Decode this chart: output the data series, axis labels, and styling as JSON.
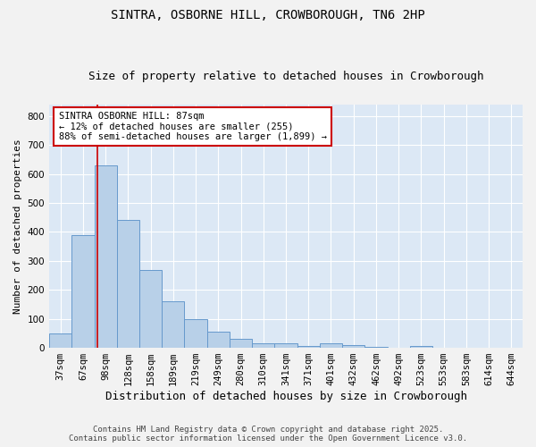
{
  "title1": "SINTRA, OSBORNE HILL, CROWBOROUGH, TN6 2HP",
  "title2": "Size of property relative to detached houses in Crowborough",
  "xlabel": "Distribution of detached houses by size in Crowborough",
  "ylabel": "Number of detached properties",
  "categories": [
    "37sqm",
    "67sqm",
    "98sqm",
    "128sqm",
    "158sqm",
    "189sqm",
    "219sqm",
    "249sqm",
    "280sqm",
    "310sqm",
    "341sqm",
    "371sqm",
    "401sqm",
    "432sqm",
    "462sqm",
    "492sqm",
    "523sqm",
    "553sqm",
    "583sqm",
    "614sqm",
    "644sqm"
  ],
  "values": [
    50,
    390,
    630,
    440,
    270,
    160,
    100,
    55,
    30,
    17,
    15,
    5,
    15,
    8,
    3,
    0,
    5,
    0,
    0,
    0,
    0
  ],
  "bar_color": "#b8d0e8",
  "bar_edge_color": "#6699cc",
  "background_color": "#dce8f5",
  "grid_color": "#ffffff",
  "annotation_title": "SINTRA OSBORNE HILL: 87sqm",
  "annotation_line1": "← 12% of detached houses are smaller (255)",
  "annotation_line2": "88% of semi-detached houses are larger (1,899) →",
  "annotation_border_color": "#cc0000",
  "ylim": [
    0,
    840
  ],
  "yticks": [
    0,
    100,
    200,
    300,
    400,
    500,
    600,
    700,
    800
  ],
  "footer1": "Contains HM Land Registry data © Crown copyright and database right 2025.",
  "footer2": "Contains public sector information licensed under the Open Government Licence v3.0.",
  "title1_fontsize": 10,
  "title2_fontsize": 9,
  "xlabel_fontsize": 9,
  "ylabel_fontsize": 8,
  "tick_fontsize": 7.5,
  "footer_fontsize": 6.5
}
